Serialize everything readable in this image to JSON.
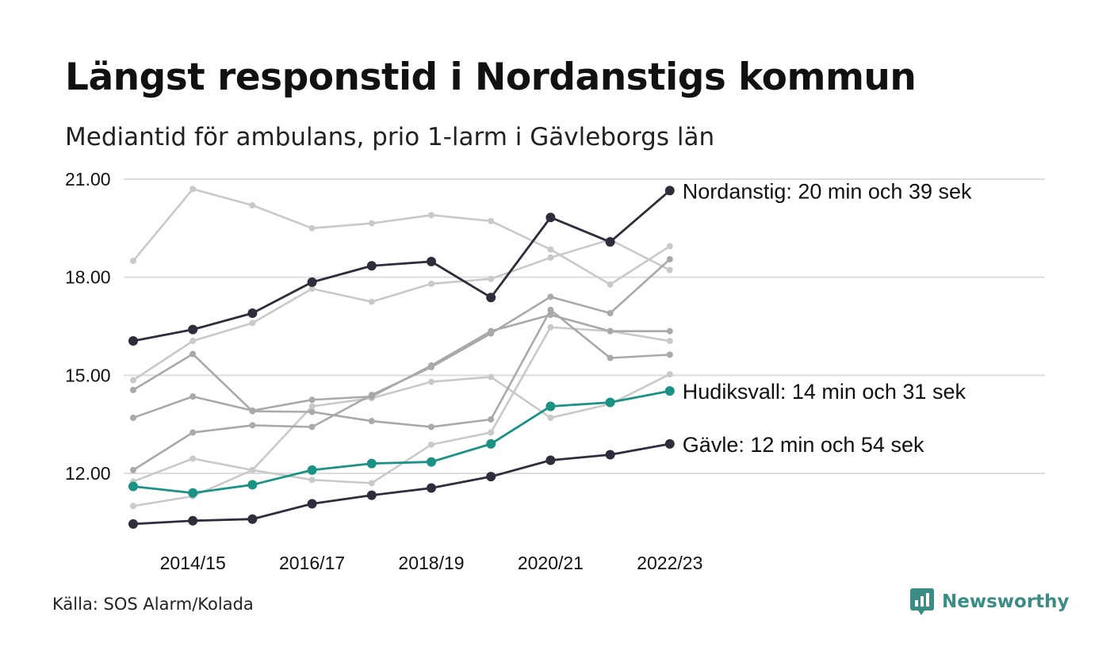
{
  "title": "Längst responstid i Nordanstigs kommun",
  "subtitle": "Mediantid för ambulans, prio 1-larm i Gävleborgs län",
  "source": "Källa: SOS Alarm/Kolada",
  "brand": "Newsworthy",
  "colors": {
    "highlight_dark": "#2d2d3c",
    "highlight_teal": "#1b9285",
    "context_light": "#c9c9c9",
    "context_mid": "#a9a9a9",
    "grid": "#dddddd",
    "brand": "#3b8c84"
  },
  "chart_data": {
    "type": "line",
    "x": [
      "2013/14",
      "2014/15",
      "2015/16",
      "2016/17",
      "2017/18",
      "2018/19",
      "2019/20",
      "2020/21",
      "2021/22",
      "2022/23"
    ],
    "x_tick_labels": [
      "2014/15",
      "2016/17",
      "2018/19",
      "2020/21",
      "2022/23"
    ],
    "y_ticks": [
      "12.00",
      "15.00",
      "18.00",
      "21.00"
    ],
    "y_tick_values": [
      12,
      15,
      18,
      21
    ],
    "ylim": [
      10.5,
      21.2
    ],
    "grid": "horizontal",
    "highlighted": [
      {
        "label": "Nordanstig: 20 min och 39 sek",
        "color": "#2d2d3c",
        "values": [
          16.05,
          16.4,
          16.9,
          17.85,
          18.35,
          18.48,
          17.38,
          19.83,
          19.08,
          20.65
        ]
      },
      {
        "label": "Hudiksvall: 14 min och 31 sek",
        "color": "#1b9285",
        "values": [
          11.6,
          11.4,
          11.65,
          12.1,
          12.3,
          12.35,
          12.9,
          14.05,
          14.17,
          14.52
        ]
      },
      {
        "label": "Gävle: 12 min och 54 sek",
        "color": "#2d2d3c",
        "values": [
          10.45,
          10.55,
          10.6,
          11.07,
          11.33,
          11.55,
          11.9,
          12.4,
          12.57,
          12.9
        ]
      }
    ],
    "context": [
      {
        "color": "#c9c9c9",
        "values": [
          18.5,
          20.7,
          20.2,
          19.5,
          19.65,
          19.9,
          19.72,
          18.85,
          17.78,
          18.95
        ]
      },
      {
        "color": "#c9c9c9",
        "values": [
          14.85,
          16.05,
          16.6,
          17.65,
          17.25,
          17.8,
          17.95,
          18.6,
          19.15,
          18.22
        ]
      },
      {
        "color": "#c9c9c9",
        "values": [
          11.75,
          12.45,
          12.1,
          11.8,
          11.7,
          12.88,
          13.25,
          16.47,
          16.35,
          16.05
        ]
      },
      {
        "color": "#c9c9c9",
        "values": [
          11.0,
          11.3,
          12.1,
          14.05,
          14.3,
          14.8,
          14.95,
          13.7,
          14.12,
          15.03
        ]
      },
      {
        "color": "#a9a9a9",
        "values": [
          14.55,
          15.65,
          13.9,
          13.88,
          13.6,
          13.42,
          13.65,
          17.0,
          15.53,
          15.63
        ]
      },
      {
        "color": "#a9a9a9",
        "values": [
          13.7,
          14.35,
          13.92,
          14.25,
          14.35,
          15.3,
          16.35,
          16.85,
          16.35,
          16.35
        ]
      },
      {
        "color": "#a9a9a9",
        "values": [
          12.1,
          13.25,
          13.47,
          13.42,
          14.4,
          15.25,
          16.28,
          17.4,
          16.9,
          18.55
        ]
      }
    ]
  }
}
